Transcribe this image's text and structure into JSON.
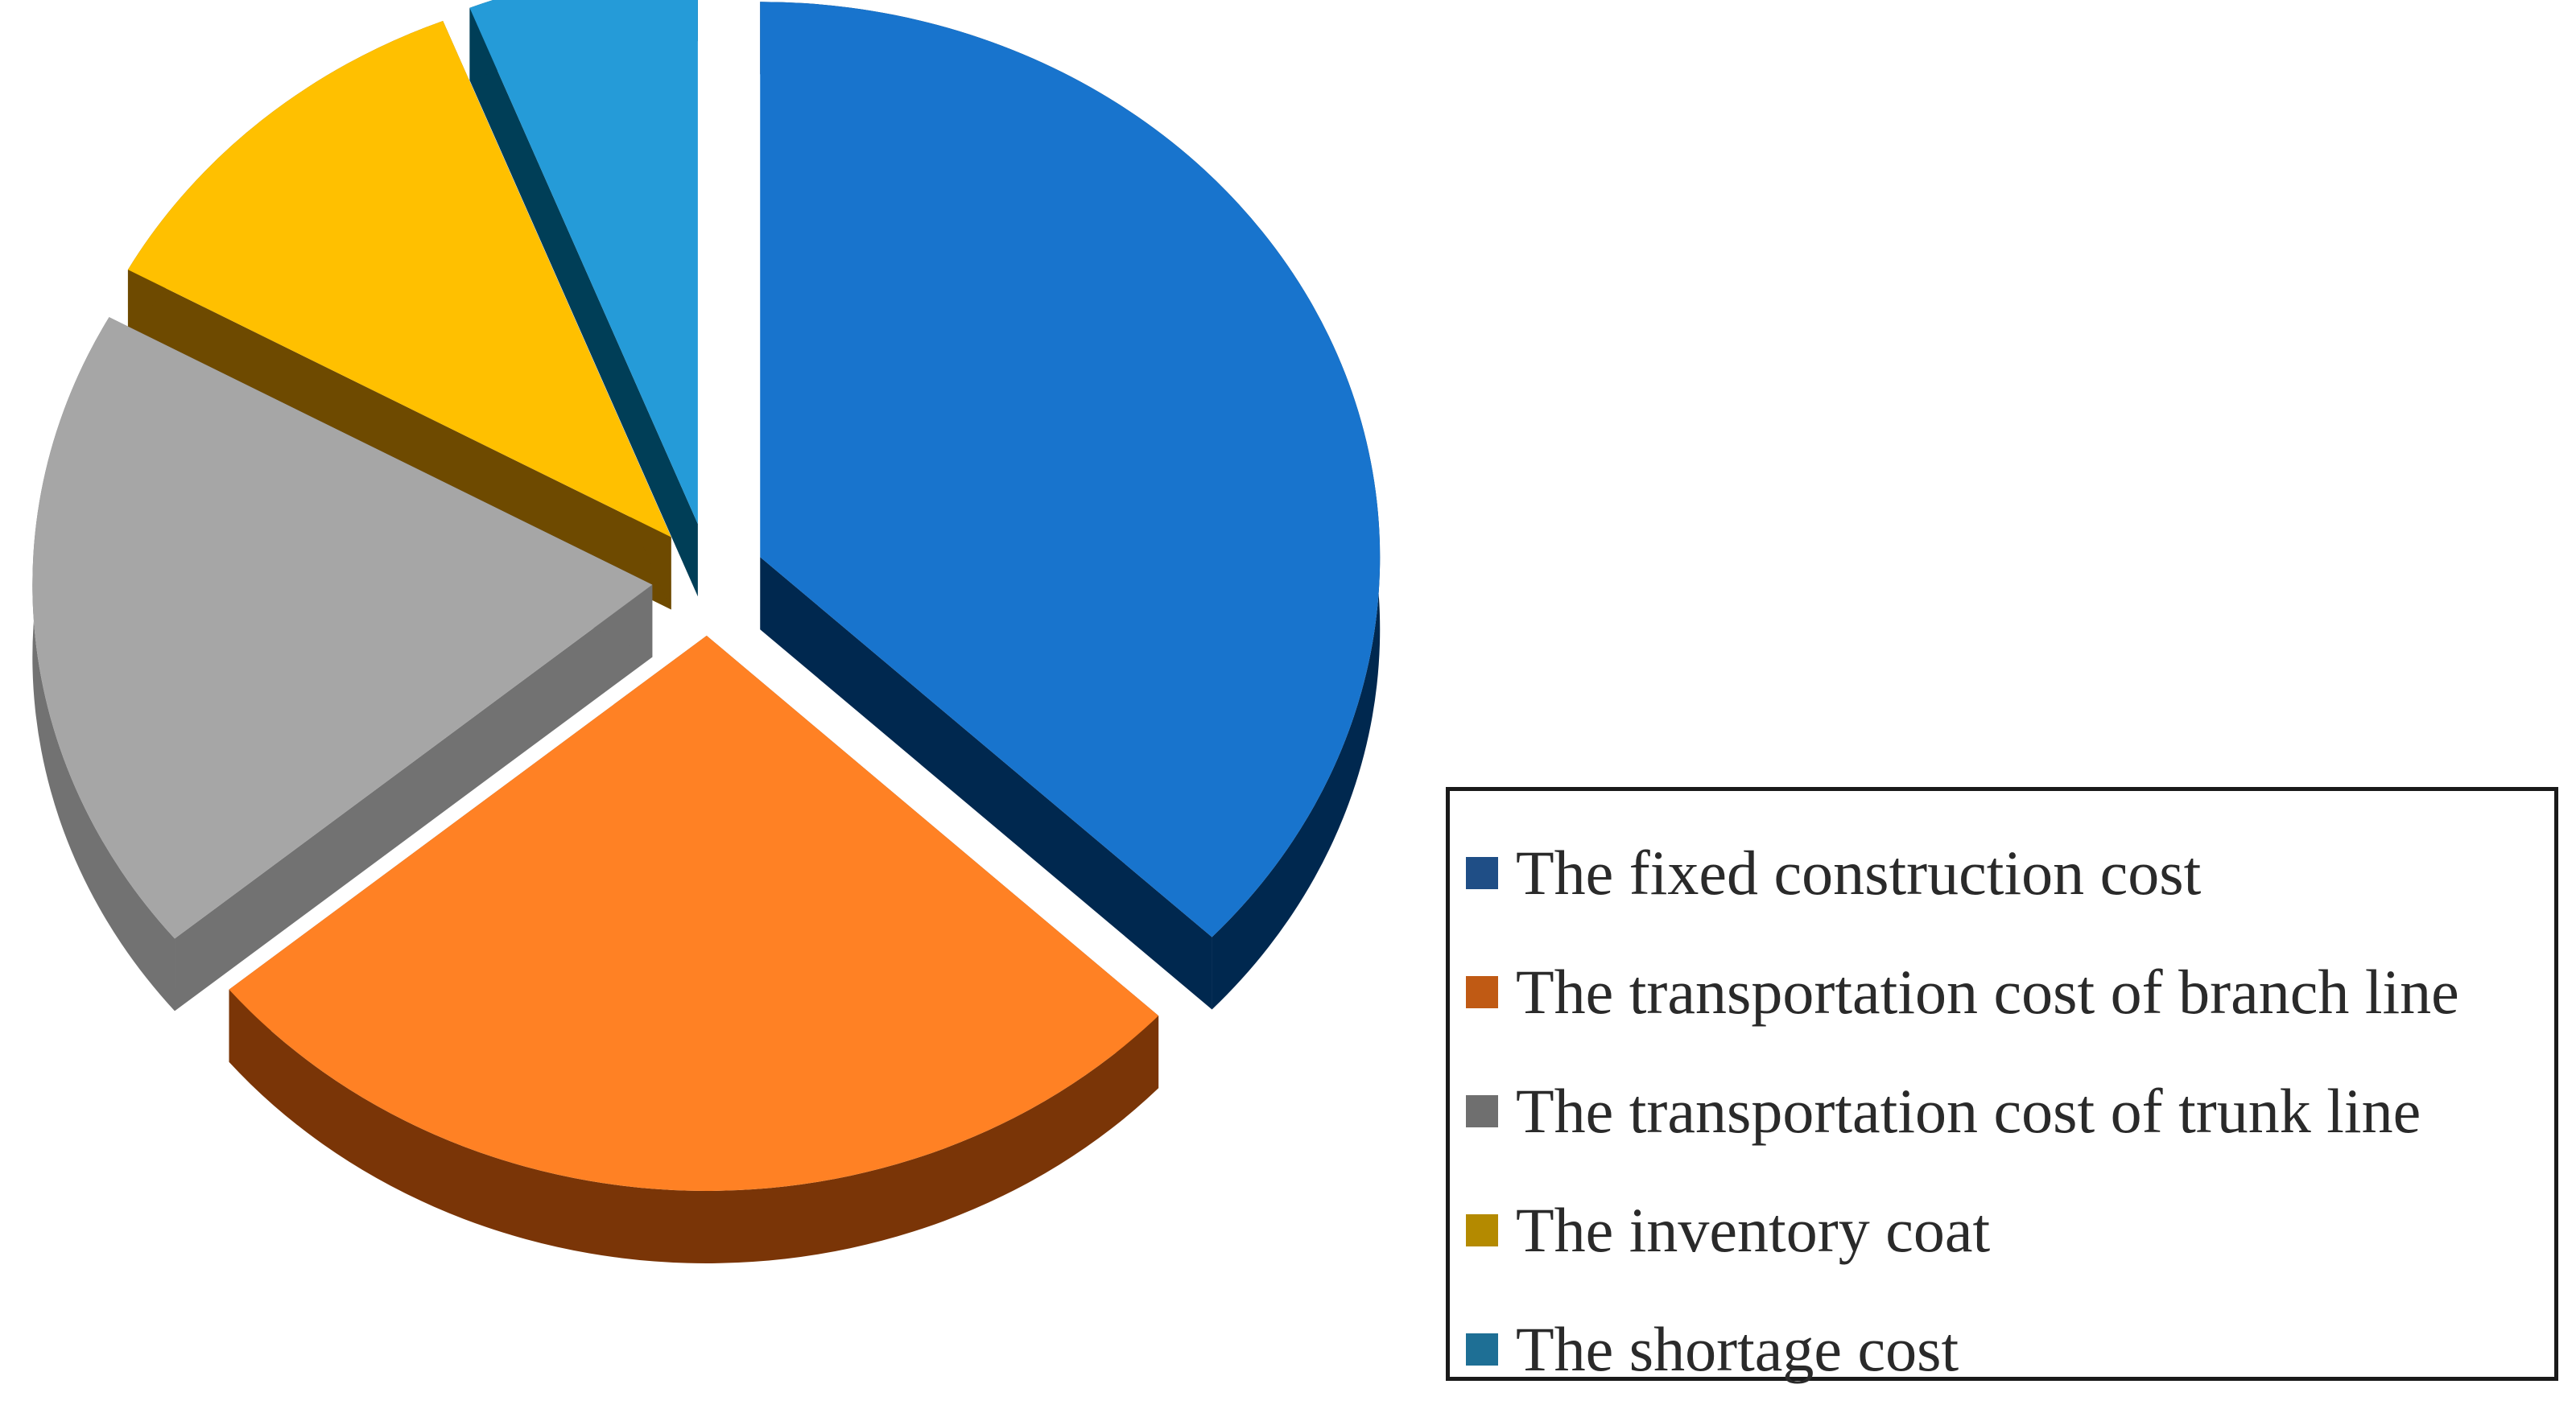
{
  "chart_data": {
    "type": "pie",
    "style": "3d-exploded",
    "legend_position": "bottom-right",
    "title": "",
    "slices": [
      {
        "label": "The fixed construction cost",
        "value": 37,
        "color": "#1874CD",
        "side_color": "#00284F",
        "swatch": "#1F4E86"
      },
      {
        "label": "The transportation cost of branch line",
        "value": 27,
        "color": "#FF8124",
        "side_color": "#7A3507",
        "swatch": "#C05A14"
      },
      {
        "label": "The transportation cost of trunk line",
        "value": 19,
        "color": "#A6A6A6",
        "side_color": "#727272",
        "swatch": "#6F6F6F"
      },
      {
        "label": "The inventory coat",
        "value": 11,
        "color": "#FFC000",
        "side_color": "#6E4A00",
        "swatch": "#B48A00"
      },
      {
        "label": "The shortage cost",
        "value": 6,
        "color": "#259BD8",
        "side_color": "#003E57",
        "swatch": "#1E6F95"
      }
    ]
  }
}
